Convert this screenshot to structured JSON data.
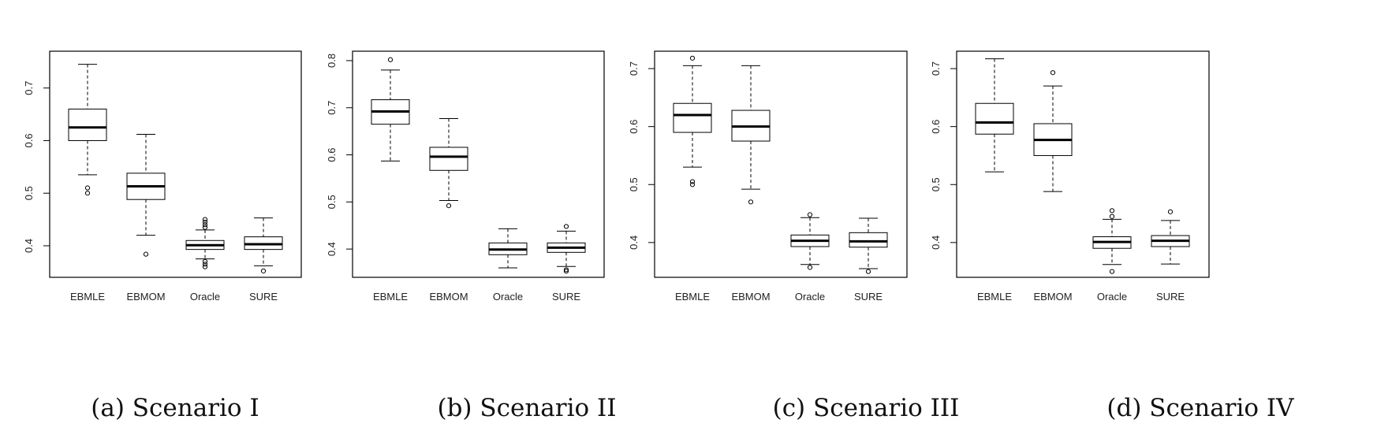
{
  "chart_data": [
    {
      "type": "boxplot",
      "caption": "(a) Scenario I",
      "categories": [
        "EBMLE",
        "EBMOM",
        "Oracle",
        "SURE"
      ],
      "ylim": [
        0.34,
        0.77
      ],
      "yticks": [
        0.4,
        0.5,
        0.6,
        0.7
      ],
      "ytick_labels": [
        "0.4",
        "0.5",
        "0.6",
        "0.7"
      ],
      "boxes": [
        {
          "label": "EBMLE",
          "min": 0.535,
          "q1": 0.6,
          "median": 0.625,
          "q3": 0.66,
          "max": 0.745,
          "outliers": [
            0.51,
            0.5
          ]
        },
        {
          "label": "EBMOM",
          "min": 0.42,
          "q1": 0.488,
          "median": 0.513,
          "q3": 0.538,
          "max": 0.612,
          "outliers": [
            0.384
          ]
        },
        {
          "label": "Oracle",
          "min": 0.375,
          "q1": 0.393,
          "median": 0.401,
          "q3": 0.41,
          "max": 0.43,
          "outliers": [
            0.45,
            0.445,
            0.44,
            0.435,
            0.37,
            0.365,
            0.36
          ]
        },
        {
          "label": "SURE",
          "min": 0.362,
          "q1": 0.393,
          "median": 0.403,
          "q3": 0.417,
          "max": 0.453,
          "outliers": [
            0.352
          ]
        }
      ]
    },
    {
      "type": "boxplot",
      "caption": "(b) Scenario II",
      "categories": [
        "EBMLE",
        "EBMOM",
        "Oracle",
        "SURE"
      ],
      "ylim": [
        0.34,
        0.82
      ],
      "yticks": [
        0.4,
        0.5,
        0.6,
        0.7,
        0.8
      ],
      "ytick_labels": [
        "0.4",
        "0.5",
        "0.6",
        "0.7",
        "0.8"
      ],
      "boxes": [
        {
          "label": "EBMLE",
          "min": 0.587,
          "q1": 0.665,
          "median": 0.692,
          "q3": 0.717,
          "max": 0.78,
          "outliers": [
            0.802
          ]
        },
        {
          "label": "EBMOM",
          "min": 0.503,
          "q1": 0.567,
          "median": 0.596,
          "q3": 0.616,
          "max": 0.677,
          "outliers": [
            0.492
          ]
        },
        {
          "label": "Oracle",
          "min": 0.36,
          "q1": 0.388,
          "median": 0.399,
          "q3": 0.413,
          "max": 0.443,
          "outliers": []
        },
        {
          "label": "SURE",
          "min": 0.363,
          "q1": 0.393,
          "median": 0.403,
          "q3": 0.413,
          "max": 0.438,
          "outliers": [
            0.448,
            0.356,
            0.353
          ]
        }
      ]
    },
    {
      "type": "boxplot",
      "caption": "(c) Scenario III",
      "categories": [
        "EBMLE",
        "EBMOM",
        "Oracle",
        "SURE"
      ],
      "ylim": [
        0.34,
        0.73
      ],
      "yticks": [
        0.4,
        0.5,
        0.6,
        0.7
      ],
      "ytick_labels": [
        "0.4",
        "0.5",
        "0.6",
        "0.7"
      ],
      "boxes": [
        {
          "label": "EBMLE",
          "min": 0.53,
          "q1": 0.59,
          "median": 0.62,
          "q3": 0.64,
          "max": 0.705,
          "outliers": [
            0.718,
            0.505,
            0.5
          ]
        },
        {
          "label": "EBMOM",
          "min": 0.492,
          "q1": 0.575,
          "median": 0.6,
          "q3": 0.628,
          "max": 0.705,
          "outliers": [
            0.47
          ]
        },
        {
          "label": "Oracle",
          "min": 0.362,
          "q1": 0.393,
          "median": 0.403,
          "q3": 0.413,
          "max": 0.443,
          "outliers": [
            0.448,
            0.357
          ]
        },
        {
          "label": "SURE",
          "min": 0.355,
          "q1": 0.392,
          "median": 0.402,
          "q3": 0.417,
          "max": 0.442,
          "outliers": [
            0.35
          ]
        }
      ]
    },
    {
      "type": "boxplot",
      "caption": "(d) Scenario IV",
      "categories": [
        "EBMLE",
        "EBMOM",
        "Oracle",
        "SURE"
      ],
      "ylim": [
        0.34,
        0.73
      ],
      "yticks": [
        0.4,
        0.5,
        0.6,
        0.7
      ],
      "ytick_labels": [
        "0.4",
        "0.5",
        "0.6",
        "0.7"
      ],
      "boxes": [
        {
          "label": "EBMLE",
          "min": 0.522,
          "q1": 0.587,
          "median": 0.607,
          "q3": 0.64,
          "max": 0.717,
          "outliers": []
        },
        {
          "label": "EBMOM",
          "min": 0.488,
          "q1": 0.55,
          "median": 0.577,
          "q3": 0.605,
          "max": 0.67,
          "outliers": [
            0.693
          ]
        },
        {
          "label": "Oracle",
          "min": 0.362,
          "q1": 0.39,
          "median": 0.401,
          "q3": 0.41,
          "max": 0.44,
          "outliers": [
            0.455,
            0.445,
            0.35
          ]
        },
        {
          "label": "SURE",
          "min": 0.363,
          "q1": 0.393,
          "median": 0.403,
          "q3": 0.412,
          "max": 0.438,
          "outliers": [
            0.453
          ]
        }
      ]
    }
  ]
}
